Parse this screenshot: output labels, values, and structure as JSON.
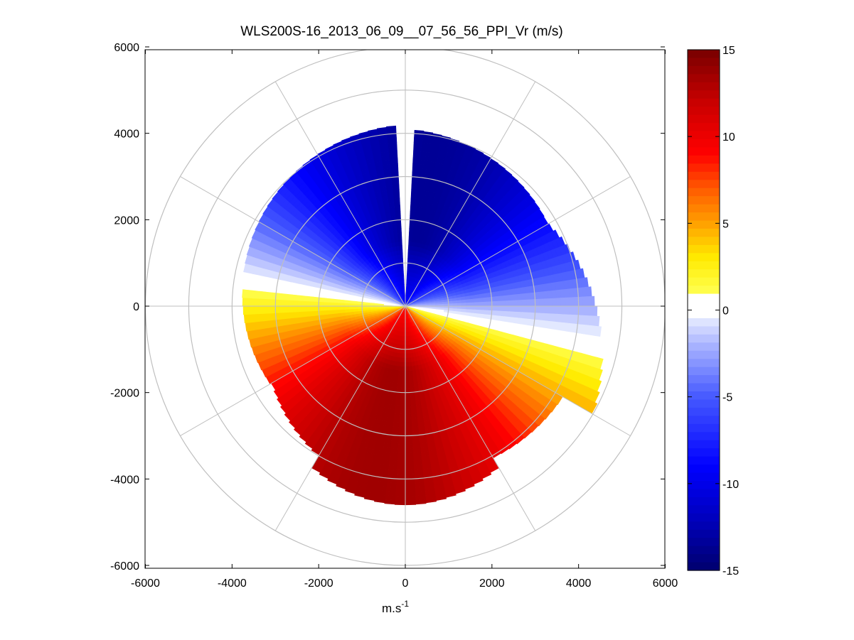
{
  "chart_data": {
    "type": "heatmap",
    "subtype": "polar-ppi",
    "title": "WLS200S-16_2013_06_09__07_56_56_PPI_Vr (m/s)",
    "xlabel_base": "m.s",
    "xlabel_sup": "-1",
    "ylabel": "",
    "xlim": [
      -6000,
      6000
    ],
    "ylim": [
      -6000,
      6000
    ],
    "xticks": [
      -6000,
      -4000,
      -2000,
      0,
      2000,
      4000,
      6000
    ],
    "yticks": [
      -6000,
      -4000,
      -2000,
      0,
      2000,
      4000,
      6000
    ],
    "xtick_labels": [
      "-6000",
      "-4000",
      "-2000",
      "0",
      "2000",
      "4000",
      "6000"
    ],
    "ytick_labels": [
      "-6000",
      "-4000",
      "-2000",
      "0",
      "2000",
      "4000",
      "6000"
    ],
    "range_rings": [
      1000,
      2000,
      3000,
      4000,
      5000,
      6000
    ],
    "spoke_angles_deg": [
      0,
      30,
      60,
      90,
      120,
      150,
      180,
      210,
      240,
      270,
      300,
      330
    ],
    "colorbar": {
      "min": -15,
      "max": 15,
      "ticks": [
        15,
        10,
        5,
        0,
        -5,
        -10,
        -15
      ],
      "tick_labels": [
        "15",
        "10",
        "5",
        "0",
        "-5",
        "-10",
        "-15"
      ],
      "white_band": [
        -0.5,
        1.0
      ]
    },
    "field_model": {
      "description": "radial velocity Vr ≈ amplitude * cos(azimuth - approach_azimuth), negative (blue) to the north, positive (red) to the south",
      "amplitude": 13.5,
      "peak_positive_azimuth_deg": 190,
      "max_range_m": 4800,
      "range_gate_m": 100,
      "azimuth_step_deg": 3
    },
    "colors": {
      "ring": "#bfbfbf",
      "frame": "#000000",
      "background": "#ffffff"
    }
  }
}
